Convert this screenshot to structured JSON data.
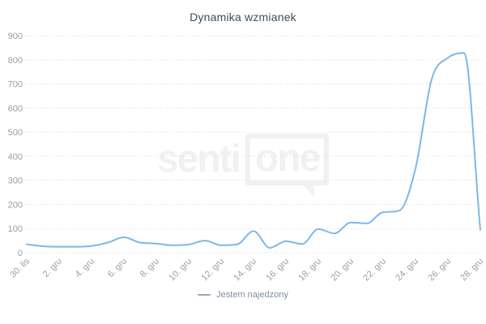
{
  "title": "Dynamika wzmianek",
  "legend": {
    "items": [
      {
        "label": "Jestem najedzony",
        "color": "#94a9bd"
      }
    ]
  },
  "watermark": {
    "part1": "senti",
    "part2": "one"
  },
  "colors": {
    "line": "#7db7ea",
    "grid": "#d5d5d5",
    "axis_label": "#95a0ab",
    "title": "#3e4c5d",
    "legend_text": "#7e8da0",
    "watermark": "#f1f1f1",
    "background": "#ffffff"
  },
  "chart_data": {
    "type": "line",
    "title": "Dynamika wzmianek",
    "categories": [
      "30. lis",
      "1. gru",
      "2. gru",
      "3. gru",
      "4. gru",
      "5. gru",
      "6. gru",
      "7. gru",
      "8. gru",
      "9. gru",
      "10. gru",
      "11. gru",
      "12. gru",
      "13. gru",
      "14. gru",
      "15. gru",
      "16. gru",
      "17. gru",
      "18. gru",
      "19. gru",
      "20. gru",
      "21. gru",
      "22. gru",
      "23. gru",
      "24. gru",
      "25. gru",
      "26. gru",
      "27. gru",
      "28. gru"
    ],
    "series": [
      {
        "name": "Jestem najedzony",
        "color": "#7db7ea",
        "values": [
          35,
          27,
          25,
          25,
          28,
          42,
          64,
          42,
          38,
          31,
          34,
          50,
          31,
          35,
          90,
          20,
          48,
          36,
          98,
          80,
          125,
          122,
          168,
          175,
          350,
          720,
          808,
          828,
          95
        ]
      }
    ],
    "x_tick_labels": [
      "30. lis",
      "2. gru",
      "4. gru",
      "6. gru",
      "8. gru",
      "10. gru",
      "12. gru",
      "14. gru",
      "16. gru",
      "18. gru",
      "20. gru",
      "22. gru",
      "24. gru",
      "26. gru",
      "28. gru"
    ],
    "y_ticks": [
      0,
      100,
      200,
      300,
      400,
      500,
      600,
      700,
      800,
      900
    ],
    "ylim": [
      0,
      900
    ],
    "xlabel": "",
    "ylabel": "",
    "grid": "horizontal-dotted",
    "legend_position": "bottom-center"
  }
}
